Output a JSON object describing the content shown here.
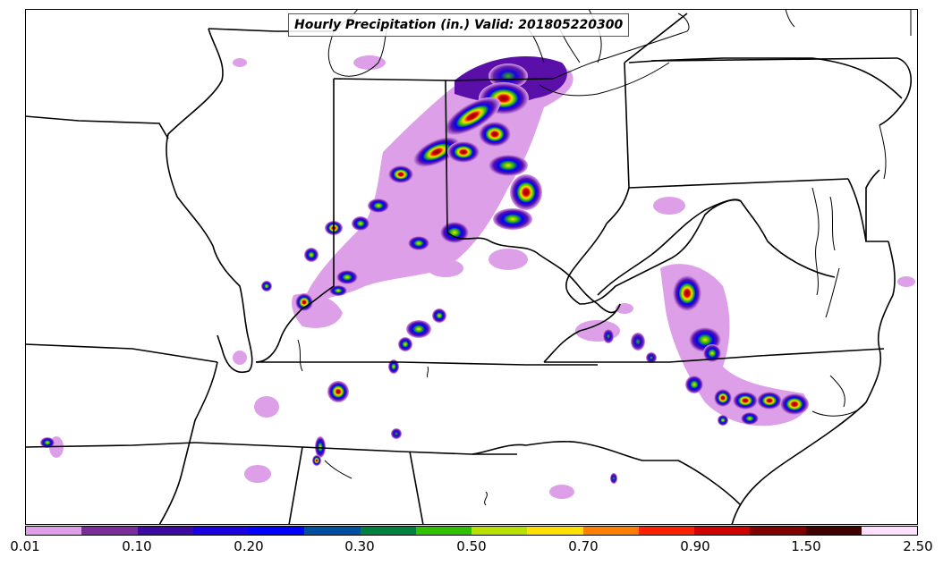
{
  "map": {
    "title": "Hourly Precipitation (in.) Valid: 201805220300",
    "colorbar": {
      "colors": [
        "#dda0e8",
        "#7a2d9a",
        "#3c0aa0",
        "#1a00e0",
        "#0000ff",
        "#0050a0",
        "#008040",
        "#30c000",
        "#b8e000",
        "#ffe000",
        "#ff8000",
        "#ff2000",
        "#d00000",
        "#800000",
        "#400000",
        "#ffe0ff"
      ],
      "tick_labels": [
        "0.01",
        "0.10",
        "0.20",
        "0.30",
        "0.50",
        "0.70",
        "0.90",
        "1.50",
        "2.50"
      ]
    },
    "precip_cells": [
      {
        "name": "indiana-michigan-band",
        "level": "heavy",
        "color_core": "#e00000"
      },
      {
        "name": "ohio-band",
        "level": "heavy",
        "color_core": "#e00000"
      },
      {
        "name": "kentucky-cluster",
        "level": "moderate",
        "color_core": "#30c000"
      },
      {
        "name": "virginia-cluster",
        "level": "heavy",
        "color_core": "#e00000"
      },
      {
        "name": "north-carolina-line",
        "level": "heavy",
        "color_core": "#e00000"
      },
      {
        "name": "tennessee-alabama-line",
        "level": "moderate",
        "color_core": "#ffe000"
      }
    ]
  }
}
